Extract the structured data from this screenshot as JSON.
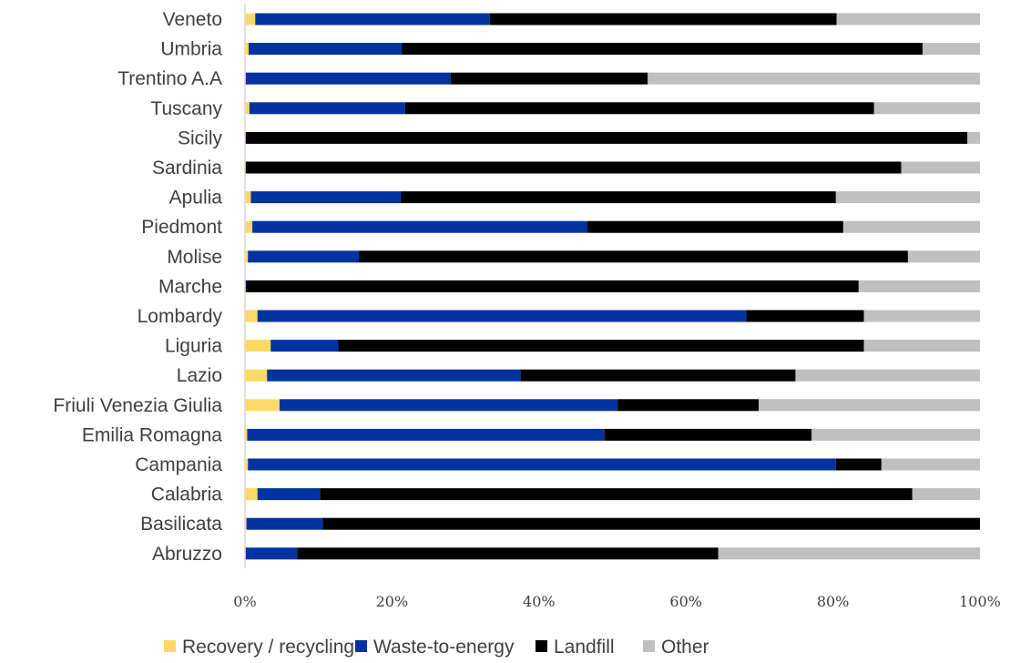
{
  "chart_data": {
    "type": "bar",
    "orientation": "horizontal",
    "stacked": true,
    "percent": true,
    "categories": [
      "Veneto",
      "Umbria",
      "Trentino A.A",
      "Tuscany",
      "Sicily",
      "Sardinia",
      "Apulia",
      "Piedmont",
      "Molise",
      "Marche",
      "Lombardy",
      "Liguria",
      "Lazio",
      "Friuli Venezia Giulia",
      "Emilia Romagna",
      "Campania",
      "Calabria",
      "Basilicata",
      "Abruzzo"
    ],
    "series": [
      {
        "name": "Recovery / recycling",
        "color": "#FFD966",
        "values": [
          1.4,
          0.5,
          0.1,
          0.6,
          0.1,
          0.1,
          0.8,
          1.0,
          0.4,
          0.1,
          1.7,
          3.5,
          3.0,
          4.7,
          0.3,
          0.4,
          1.7,
          0.2,
          0.1
        ]
      },
      {
        "name": "Waste-to-energy",
        "color": "#0033A0",
        "values": [
          31.9,
          20.8,
          27.9,
          21.2,
          0.0,
          0.0,
          20.4,
          45.6,
          15.1,
          0.0,
          66.5,
          9.2,
          34.5,
          46.0,
          48.6,
          80.0,
          8.5,
          10.4,
          7.0
        ]
      },
      {
        "name": "Landfill",
        "color": "#000000",
        "values": [
          47.2,
          70.9,
          26.8,
          63.8,
          98.2,
          89.2,
          59.2,
          34.8,
          74.7,
          83.4,
          16.0,
          71.5,
          37.4,
          19.2,
          28.2,
          6.2,
          80.6,
          89.4,
          57.3
        ]
      },
      {
        "name": "Other",
        "color": "#BFBFBF",
        "values": [
          19.5,
          7.8,
          45.2,
          14.4,
          1.7,
          10.7,
          19.6,
          18.6,
          9.8,
          16.5,
          15.8,
          15.8,
          25.1,
          30.1,
          22.9,
          13.4,
          9.2,
          0.0,
          35.6
        ]
      }
    ],
    "xticks": [
      "0%",
      "20%",
      "40%",
      "60%",
      "80%",
      "100%"
    ],
    "xlim": [
      0,
      100
    ],
    "grid": false,
    "legend_position": "bottom"
  }
}
